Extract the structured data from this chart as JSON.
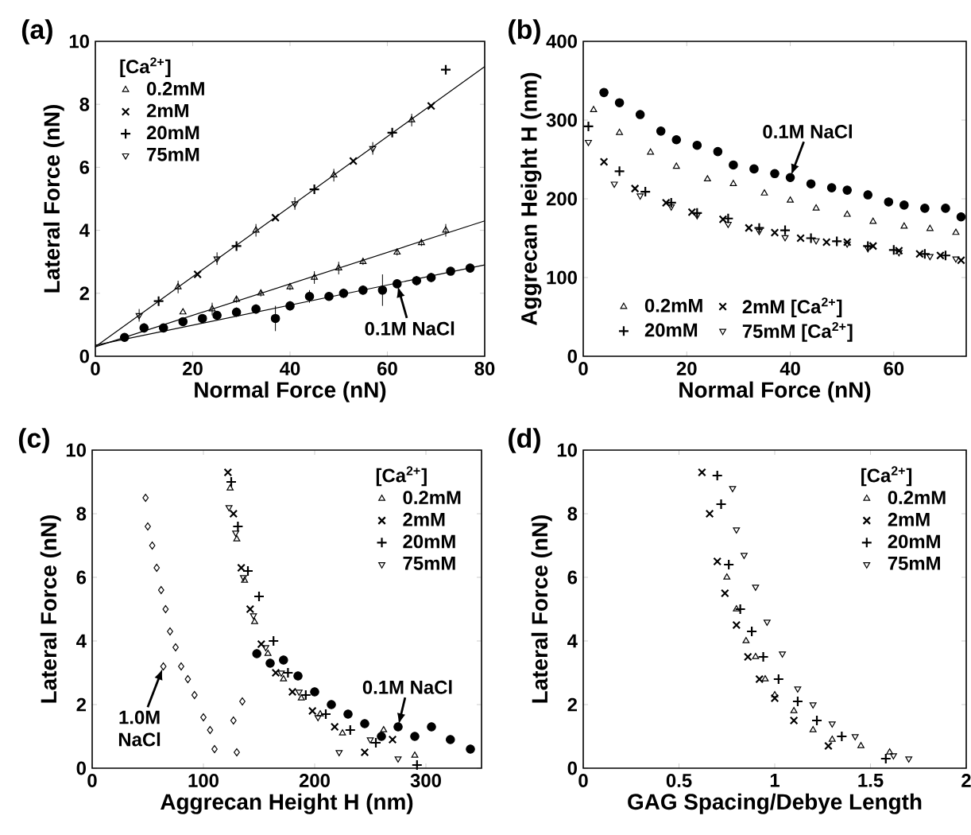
{
  "chart_data": [
    {
      "type": "scatter",
      "title": "(a)",
      "xlabel": "Normal Force (nN)",
      "ylabel": "Lateral Force (nN)",
      "xlim": [
        0,
        80
      ],
      "ylim": [
        0,
        10
      ],
      "xticks": [
        0,
        20,
        40,
        60,
        80
      ],
      "yticks": [
        0,
        2,
        4,
        6,
        8,
        10
      ],
      "legend": "top left",
      "legend_title": "[Ca$^{2+}$]",
      "series": [
        {
          "name": "0.2mM",
          "color": "#000000",
          "marker": "triangle",
          "x": [
            17,
            33,
            49,
            65
          ],
          "values": [
            2.2,
            4.0,
            5.75,
            7.5
          ],
          "errors": [
            0.2,
            0.2,
            0.2,
            0.2
          ]
        },
        {
          "name": "2mM",
          "color": "#000000",
          "marker": "cross",
          "x": [
            21,
            37,
            53,
            69
          ],
          "values": [
            2.6,
            4.4,
            6.2,
            7.95
          ]
        },
        {
          "name": "20mM",
          "color": "#000000",
          "marker": "plus",
          "x": [
            13,
            29,
            45,
            61,
            72
          ],
          "values": [
            1.75,
            3.5,
            5.3,
            7.1,
            9.1
          ]
        },
        {
          "name": "75mM",
          "color": "#000000",
          "marker": "triangle-down",
          "x": [
            9,
            25,
            41,
            57
          ],
          "values": [
            1.3,
            3.1,
            4.85,
            6.6
          ],
          "errors": [
            0.2,
            0.2,
            0.2,
            0.2
          ]
        },
        {
          "color": "#000000",
          "marker": "triangle",
          "x": [
            18,
            24,
            29,
            34,
            40,
            45,
            50,
            55,
            62,
            67,
            72
          ],
          "values": [
            1.4,
            1.5,
            1.8,
            2.0,
            2.2,
            2.5,
            2.8,
            3.0,
            3.3,
            3.6,
            4.0
          ],
          "errors": [
            null,
            0.2,
            0.1,
            0.1,
            0.1,
            0.2,
            0.2,
            0.1,
            0.1,
            0.1,
            0.2
          ]
        },
        {
          "color": "#000000",
          "marker": "circle",
          "x": [
            6,
            10,
            14,
            18,
            22,
            25,
            29,
            33,
            37,
            40,
            44,
            48,
            51,
            55,
            59,
            62,
            66,
            69,
            73,
            77
          ],
          "values": [
            0.6,
            0.9,
            0.9,
            1.1,
            1.2,
            1.3,
            1.4,
            1.5,
            1.2,
            1.6,
            1.9,
            1.9,
            2.0,
            2.1,
            2.1,
            2.3,
            2.4,
            2.5,
            2.7,
            2.8
          ],
          "errors": [
            0.1,
            0.15,
            0.1,
            0.1,
            0.1,
            0.1,
            0.15,
            0.15,
            0.4,
            0.15,
            0.2,
            0.1,
            0.15,
            0.15,
            0.5,
            0.1,
            0.15,
            0.15,
            0.1,
            0.1
          ]
        },
        {
          "type": "line",
          "color": "#000000",
          "marker": "none",
          "x": [
            0,
            80
          ],
          "values": [
            0.3,
            9.2
          ]
        },
        {
          "type": "line",
          "color": "#000000",
          "marker": "none",
          "x": [
            0,
            80
          ],
          "values": [
            0.3,
            4.3
          ]
        },
        {
          "type": "line",
          "color": "#000000",
          "marker": "none",
          "x": [
            0,
            80
          ],
          "values": [
            0.35,
            2.9
          ]
        }
      ],
      "annotations": [
        {
          "text": "0.1M NaCl",
          "x": 62,
          "y": 2.3
        }
      ]
    },
    {
      "type": "scatter",
      "title": "(b)",
      "xlabel": "Normal Force (nN)",
      "ylabel": "Aggrecan Height H (nm)",
      "xlim": [
        0,
        74
      ],
      "ylim": [
        0,
        400
      ],
      "xticks": [
        0,
        20,
        40,
        60
      ],
      "yticks": [
        0,
        100,
        200,
        300,
        400
      ],
      "legend": "bottom",
      "series": [
        {
          "name": "0.2mM",
          "color": "#000000",
          "marker": "triangle",
          "x": [
            2,
            7,
            13,
            18,
            24,
            29,
            35,
            40,
            45,
            51,
            56,
            62,
            67,
            72
          ],
          "values": [
            313,
            284,
            259,
            241,
            225,
            219,
            207,
            198,
            188,
            180,
            171,
            165,
            162,
            157
          ]
        },
        {
          "name": "2mM [Ca$^{2+}$]",
          "color": "#000000",
          "marker": "cross",
          "x": [
            4,
            10,
            16,
            21,
            27,
            32,
            37,
            42,
            47,
            51,
            56,
            61,
            65,
            69,
            73
          ],
          "values": [
            247,
            213,
            195,
            183,
            174,
            163,
            157,
            150,
            145,
            145,
            140,
            134,
            130,
            128,
            122
          ]
        },
        {
          "name": "20mM",
          "color": "#000000",
          "marker": "plus",
          "x": [
            1,
            7,
            12,
            17,
            22,
            28,
            34,
            39,
            44,
            49,
            55,
            60,
            66,
            70
          ],
          "values": [
            292,
            235,
            209,
            195,
            182,
            175,
            163,
            160,
            150,
            146,
            140,
            135,
            130,
            128
          ]
        },
        {
          "name": "75mM [Ca$^{2+}$]",
          "color": "#000000",
          "marker": "triangle-down",
          "x": [
            1,
            6,
            11,
            17,
            22,
            28,
            34,
            39,
            45,
            51,
            55,
            61,
            67,
            72
          ],
          "values": [
            272,
            219,
            204,
            190,
            179,
            168,
            159,
            151,
            147,
            143,
            137,
            132,
            127,
            124
          ]
        },
        {
          "color": "#000000",
          "marker": "circle",
          "x": [
            4,
            7,
            11,
            15,
            18,
            22,
            26,
            29,
            33,
            37,
            40,
            44,
            48,
            51,
            55,
            59,
            62,
            66,
            70,
            73
          ],
          "values": [
            335,
            322,
            307,
            286,
            275,
            268,
            260,
            243,
            238,
            232,
            227,
            219,
            214,
            211,
            205,
            196,
            192,
            188,
            188,
            177
          ]
        }
      ],
      "annotations": [
        {
          "text": "0.1M NaCl",
          "x": 40,
          "y": 227
        }
      ]
    },
    {
      "type": "scatter",
      "title": "(c)",
      "xlabel": "Aggrecan Height H (nm)",
      "ylabel": "Lateral Force (nN)",
      "xlim": [
        0,
        350
      ],
      "ylim": [
        0,
        10
      ],
      "xticks": [
        0,
        100,
        200,
        300
      ],
      "yticks": [
        0,
        2,
        4,
        6,
        8,
        10
      ],
      "legend": "top right",
      "legend_title": "[Ca$^{2+}$]",
      "series": [
        {
          "name": "0.2mM",
          "color": "#000000",
          "marker": "triangle",
          "x": [
            124,
            130,
            137,
            146,
            158,
            172,
            188,
            205,
            225,
            262,
            290
          ],
          "values": [
            8.8,
            7.2,
            5.9,
            4.6,
            3.6,
            2.8,
            2.2,
            1.7,
            1.1,
            1.2,
            0.4
          ]
        },
        {
          "name": "2mM",
          "color": "#000000",
          "marker": "cross",
          "x": [
            122,
            127,
            134,
            142,
            152,
            165,
            180,
            198,
            218,
            245,
            270
          ],
          "values": [
            9.3,
            8.0,
            6.3,
            5.0,
            3.9,
            3.0,
            2.4,
            1.8,
            1.3,
            0.5,
            0.9
          ]
        },
        {
          "name": "20mM",
          "color": "#000000",
          "marker": "plus",
          "x": [
            125,
            131,
            140,
            150,
            163,
            176,
            192,
            210,
            232,
            255,
            292
          ],
          "values": [
            9.0,
            7.6,
            6.2,
            5.4,
            4.0,
            3.0,
            2.3,
            1.7,
            1.2,
            0.8,
            0.1
          ]
        },
        {
          "name": "75mM",
          "color": "#000000",
          "marker": "triangle-down",
          "x": [
            123,
            129,
            136,
            145,
            156,
            170,
            186,
            203,
            222,
            250,
            275
          ],
          "values": [
            8.2,
            7.4,
            6.0,
            4.8,
            3.8,
            3.0,
            2.4,
            1.6,
            0.5,
            0.9,
            0.3
          ]
        },
        {
          "color": "#000000",
          "marker": "circle",
          "x": [
            148,
            160,
            172,
            185,
            200,
            215,
            230,
            245,
            260,
            275,
            290,
            305,
            322,
            340
          ],
          "values": [
            3.6,
            3.3,
            3.4,
            2.9,
            2.4,
            2.0,
            1.7,
            1.4,
            1.0,
            1.3,
            1.0,
            1.3,
            0.9,
            0.6
          ]
        },
        {
          "color": "#000000",
          "marker": "diamond",
          "x": [
            48,
            50,
            54,
            58,
            62,
            64,
            66,
            70,
            75,
            80,
            86,
            92,
            100,
            106,
            110,
            127,
            130,
            135
          ],
          "values": [
            8.5,
            7.6,
            7.0,
            6.3,
            5.6,
            3.2,
            5.0,
            4.3,
            3.8,
            3.2,
            2.8,
            2.3,
            1.6,
            1.2,
            0.6,
            1.5,
            0.5,
            2.1
          ]
        }
      ],
      "annotations": [
        {
          "text": "1.0M NaCl",
          "x": 64,
          "y": 3.2
        },
        {
          "text": "0.1M NaCl",
          "x": 275,
          "y": 1.3
        }
      ]
    },
    {
      "type": "scatter",
      "title": "(d)",
      "xlabel": "GAG Spacing/Debye Length",
      "ylabel": "Lateral Force (nN)",
      "xlim": [
        0,
        2
      ],
      "ylim": [
        0,
        10
      ],
      "xticks": [
        0,
        0.5,
        1,
        1.5,
        2
      ],
      "yticks": [
        0,
        2,
        4,
        6,
        8,
        10
      ],
      "legend": "top right",
      "legend_title": "[Ca$^{2+}$]",
      "series": [
        {
          "name": "0.2mM",
          "color": "#000000",
          "marker": "triangle",
          "x": [
            0.75,
            0.8,
            0.85,
            0.9,
            0.95,
            1.0,
            1.1,
            1.2,
            1.3,
            1.45,
            1.6
          ],
          "values": [
            6.0,
            5.0,
            4.0,
            3.5,
            2.8,
            2.3,
            1.8,
            1.2,
            0.9,
            0.7,
            0.5
          ]
        },
        {
          "name": "2mM",
          "color": "#000000",
          "marker": "cross",
          "x": [
            0.62,
            0.66,
            0.7,
            0.74,
            0.8,
            0.86,
            0.92,
            1.0,
            1.1,
            1.28
          ],
          "values": [
            9.3,
            8.0,
            6.5,
            5.5,
            4.5,
            3.5,
            2.8,
            2.2,
            1.5,
            0.7
          ]
        },
        {
          "name": "20mM",
          "color": "#000000",
          "marker": "plus",
          "x": [
            0.7,
            0.72,
            0.76,
            0.82,
            0.88,
            0.94,
            1.02,
            1.12,
            1.22,
            1.35,
            1.58
          ],
          "values": [
            9.2,
            8.3,
            6.4,
            5.0,
            4.3,
            3.5,
            2.8,
            2.1,
            1.5,
            1.0,
            0.3
          ]
        },
        {
          "name": "75mM",
          "color": "#000000",
          "marker": "triangle-down",
          "x": [
            0.78,
            0.8,
            0.84,
            0.9,
            0.96,
            1.04,
            1.12,
            1.2,
            1.3,
            1.42,
            1.62,
            1.7
          ],
          "values": [
            8.8,
            7.5,
            6.7,
            5.7,
            4.6,
            3.6,
            2.5,
            2.0,
            1.4,
            1.0,
            0.4,
            0.3
          ]
        }
      ]
    }
  ]
}
